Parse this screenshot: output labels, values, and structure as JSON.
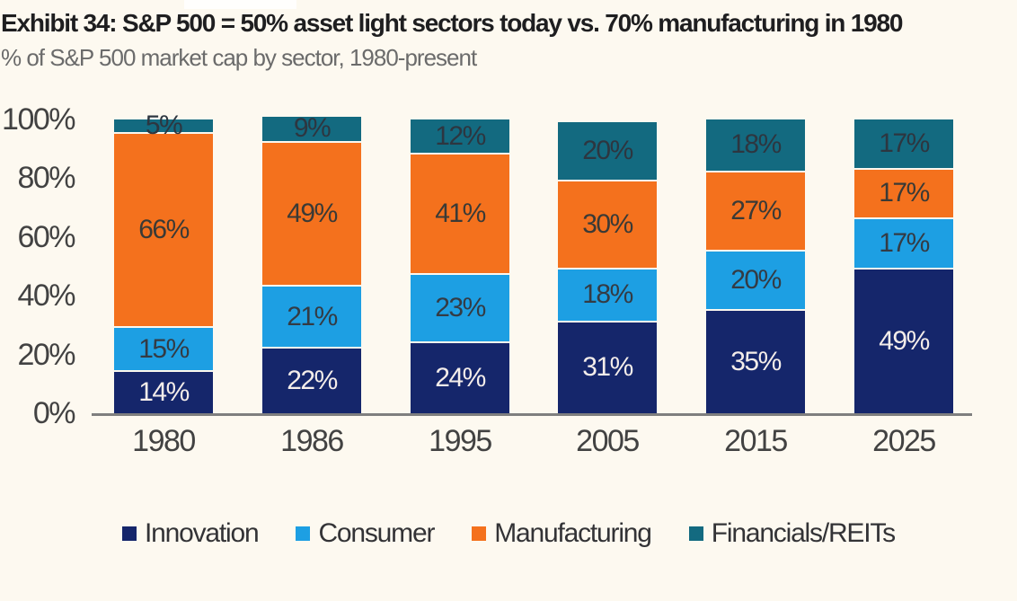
{
  "header": {
    "title": "Exhibit 34: S&P 500 = 50% asset light sectors today vs. 70% manufacturing in 1980",
    "subtitle": "% of S&P 500 market cap by sector, 1980-present"
  },
  "chart_data": {
    "type": "bar",
    "stacked": true,
    "title": "Exhibit 34: S&P 500 = 50% asset light sectors today vs. 70% manufacturing in 1980",
    "subtitle": "% of S&P 500 market cap by sector, 1980-present",
    "categories": [
      "1980",
      "1986",
      "1995",
      "2005",
      "2015",
      "2025"
    ],
    "series": [
      {
        "name": "Innovation",
        "color": "#15266b",
        "label_color": "#f4edea",
        "values": [
          14,
          22,
          24,
          31,
          35,
          49
        ]
      },
      {
        "name": "Consumer",
        "color": "#1d9fe3",
        "label_color": "#343b44",
        "values": [
          15,
          21,
          23,
          18,
          20,
          17
        ]
      },
      {
        "name": "Manufacturing",
        "color": "#f4711d",
        "label_color": "#3a3a36",
        "values": [
          66,
          49,
          41,
          30,
          27,
          17
        ]
      },
      {
        "name": "Financials/REITs",
        "color": "#136a80",
        "label_color": "#2d3640",
        "values": [
          5,
          9,
          12,
          20,
          18,
          17
        ]
      }
    ],
    "y_ticks": [
      "100%",
      "80%",
      "60%",
      "40%",
      "20%",
      "0%"
    ],
    "ylim": [
      0,
      100
    ],
    "value_suffix": "%",
    "grid": false,
    "legend_position": "bottom",
    "axis_line_color": "#7f7f7f",
    "background_color": "#fdf9f0"
  }
}
